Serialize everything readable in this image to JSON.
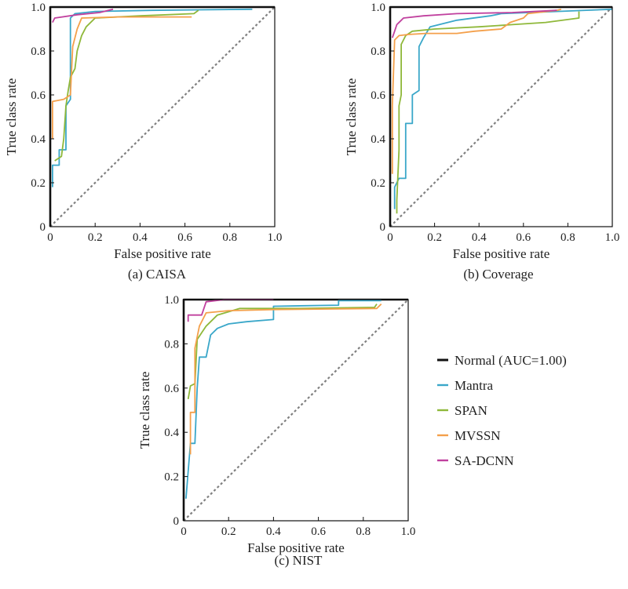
{
  "colors": {
    "Normal": "#111111",
    "Mantra": "#3aa7c9",
    "SPAN": "#8fb83a",
    "MVSSN": "#f4a04b",
    "SA-DCNN": "#c0409e",
    "diagonal": "#808080"
  },
  "legend": {
    "placement": "right of panel (c)",
    "entries": [
      "Normal (AUC=1.00)",
      "Mantra",
      "SPAN",
      "MVSSN",
      "SA-DCNN"
    ]
  },
  "chart_data": [
    {
      "type": "line",
      "caption": "(a) CAISA",
      "xlabel": "False positive rate",
      "ylabel": "True class rate",
      "xlim": [
        0,
        1
      ],
      "ylim": [
        0,
        1
      ],
      "xticks": [
        "0",
        "0.2",
        "0.4",
        "0.6",
        "0.8",
        "1.0"
      ],
      "yticks": [
        "0",
        "0.2",
        "0.4",
        "0.6",
        "0.8",
        "1.0"
      ],
      "grid": false,
      "series": [
        {
          "name": "Normal",
          "points": [
            [
              0,
              0
            ],
            [
              0,
              1
            ],
            [
              1,
              1
            ]
          ]
        },
        {
          "name": "Mantra",
          "points": [
            [
              0.01,
              0.18
            ],
            [
              0.01,
              0.28
            ],
            [
              0.04,
              0.28
            ],
            [
              0.04,
              0.35
            ],
            [
              0.07,
              0.35
            ],
            [
              0.07,
              0.55
            ],
            [
              0.09,
              0.58
            ],
            [
              0.09,
              0.95
            ],
            [
              0.11,
              0.97
            ],
            [
              0.2,
              0.98
            ],
            [
              0.45,
              0.985
            ],
            [
              0.9,
              0.99
            ]
          ]
        },
        {
          "name": "SPAN",
          "points": [
            [
              0.02,
              0.3
            ],
            [
              0.05,
              0.32
            ],
            [
              0.06,
              0.4
            ],
            [
              0.07,
              0.55
            ],
            [
              0.08,
              0.62
            ],
            [
              0.09,
              0.68
            ],
            [
              0.11,
              0.72
            ],
            [
              0.12,
              0.8
            ],
            [
              0.14,
              0.87
            ],
            [
              0.16,
              0.91
            ],
            [
              0.2,
              0.95
            ],
            [
              0.4,
              0.96
            ],
            [
              0.64,
              0.97
            ],
            [
              0.66,
              0.985
            ]
          ]
        },
        {
          "name": "MVSSN",
          "points": [
            [
              0.01,
              0.4
            ],
            [
              0.01,
              0.57
            ],
            [
              0.06,
              0.58
            ],
            [
              0.09,
              0.6
            ],
            [
              0.1,
              0.82
            ],
            [
              0.12,
              0.9
            ],
            [
              0.14,
              0.95
            ],
            [
              0.3,
              0.955
            ],
            [
              0.63,
              0.955
            ]
          ]
        },
        {
          "name": "SA-DCNN",
          "points": [
            [
              0.01,
              0.93
            ],
            [
              0.02,
              0.95
            ],
            [
              0.12,
              0.965
            ],
            [
              0.22,
              0.975
            ],
            [
              0.28,
              0.99
            ]
          ]
        }
      ]
    },
    {
      "type": "line",
      "caption": "(b) Coverage",
      "xlabel": "False positive rate",
      "ylabel": "True class rate",
      "xlim": [
        0,
        1
      ],
      "ylim": [
        0,
        1
      ],
      "xticks": [
        "0",
        "0.2",
        "0.4",
        "0.6",
        "0.8",
        "1.0"
      ],
      "yticks": [
        "0",
        "0.2",
        "0.4",
        "0.6",
        "0.8",
        "1.0"
      ],
      "grid": false,
      "series": [
        {
          "name": "Normal",
          "points": [
            [
              0,
              0
            ],
            [
              0,
              1
            ],
            [
              1,
              1
            ]
          ]
        },
        {
          "name": "Mantra",
          "points": [
            [
              0.02,
              0.08
            ],
            [
              0.02,
              0.18
            ],
            [
              0.04,
              0.22
            ],
            [
              0.07,
              0.22
            ],
            [
              0.07,
              0.47
            ],
            [
              0.1,
              0.47
            ],
            [
              0.1,
              0.6
            ],
            [
              0.13,
              0.62
            ],
            [
              0.13,
              0.82
            ],
            [
              0.15,
              0.86
            ],
            [
              0.18,
              0.91
            ],
            [
              0.3,
              0.94
            ],
            [
              0.45,
              0.96
            ],
            [
              0.5,
              0.97
            ],
            [
              0.75,
              0.98
            ],
            [
              1.0,
              0.99
            ]
          ]
        },
        {
          "name": "SPAN",
          "points": [
            [
              0.03,
              0.06
            ],
            [
              0.03,
              0.12
            ],
            [
              0.04,
              0.35
            ],
            [
              0.04,
              0.55
            ],
            [
              0.05,
              0.6
            ],
            [
              0.05,
              0.83
            ],
            [
              0.07,
              0.87
            ],
            [
              0.1,
              0.89
            ],
            [
              0.2,
              0.9
            ],
            [
              0.4,
              0.91
            ],
            [
              0.55,
              0.92
            ],
            [
              0.7,
              0.93
            ],
            [
              0.85,
              0.95
            ],
            [
              0.85,
              0.98
            ]
          ]
        },
        {
          "name": "MVSSN",
          "points": [
            [
              0.01,
              0.24
            ],
            [
              0.01,
              0.55
            ],
            [
              0.02,
              0.85
            ],
            [
              0.04,
              0.87
            ],
            [
              0.08,
              0.875
            ],
            [
              0.16,
              0.88
            ],
            [
              0.3,
              0.88
            ],
            [
              0.38,
              0.89
            ],
            [
              0.5,
              0.9
            ],
            [
              0.54,
              0.93
            ],
            [
              0.6,
              0.95
            ],
            [
              0.62,
              0.97
            ],
            [
              0.75,
              0.985
            ],
            [
              0.77,
              0.99
            ]
          ]
        },
        {
          "name": "SA-DCNN",
          "points": [
            [
              0.01,
              0.86
            ],
            [
              0.02,
              0.89
            ],
            [
              0.03,
              0.92
            ],
            [
              0.06,
              0.95
            ],
            [
              0.15,
              0.96
            ],
            [
              0.3,
              0.97
            ],
            [
              0.55,
              0.975
            ],
            [
              0.75,
              0.985
            ]
          ]
        }
      ]
    },
    {
      "type": "line",
      "caption": "(c) NIST",
      "xlabel": "False positive rate",
      "ylabel": "True class rate",
      "xlim": [
        0,
        1
      ],
      "ylim": [
        0,
        1
      ],
      "xticks": [
        "0",
        "0.2",
        "0.4",
        "0.6",
        "0.8",
        "1.0"
      ],
      "yticks": [
        "0",
        "0.2",
        "0.4",
        "0.6",
        "0.8",
        "1.0"
      ],
      "grid": false,
      "series": [
        {
          "name": "Normal",
          "points": [
            [
              0,
              0
            ],
            [
              0,
              1
            ],
            [
              1,
              1
            ]
          ]
        },
        {
          "name": "Mantra",
          "points": [
            [
              0.01,
              0.1
            ],
            [
              0.03,
              0.35
            ],
            [
              0.05,
              0.35
            ],
            [
              0.06,
              0.6
            ],
            [
              0.07,
              0.74
            ],
            [
              0.1,
              0.74
            ],
            [
              0.12,
              0.84
            ],
            [
              0.15,
              0.87
            ],
            [
              0.2,
              0.89
            ],
            [
              0.28,
              0.9
            ],
            [
              0.4,
              0.91
            ],
            [
              0.4,
              0.97
            ],
            [
              0.69,
              0.975
            ],
            [
              0.69,
              0.995
            ],
            [
              0.88,
              0.995
            ]
          ]
        },
        {
          "name": "SPAN",
          "points": [
            [
              0.02,
              0.55
            ],
            [
              0.03,
              0.61
            ],
            [
              0.05,
              0.62
            ],
            [
              0.06,
              0.82
            ],
            [
              0.08,
              0.85
            ],
            [
              0.1,
              0.88
            ],
            [
              0.15,
              0.93
            ],
            [
              0.25,
              0.96
            ],
            [
              0.5,
              0.96
            ],
            [
              0.85,
              0.965
            ],
            [
              0.86,
              0.98
            ]
          ]
        },
        {
          "name": "MVSSN",
          "points": [
            [
              0.03,
              0.3
            ],
            [
              0.03,
              0.49
            ],
            [
              0.05,
              0.49
            ],
            [
              0.05,
              0.78
            ],
            [
              0.07,
              0.88
            ],
            [
              0.1,
              0.94
            ],
            [
              0.2,
              0.95
            ],
            [
              0.4,
              0.955
            ],
            [
              0.86,
              0.96
            ],
            [
              0.88,
              0.98
            ]
          ]
        },
        {
          "name": "SA-DCNN",
          "points": [
            [
              0.02,
              0.9
            ],
            [
              0.02,
              0.93
            ],
            [
              0.08,
              0.93
            ],
            [
              0.1,
              0.99
            ],
            [
              0.18,
              1.0
            ],
            [
              0.4,
              1.0
            ]
          ]
        }
      ]
    }
  ]
}
